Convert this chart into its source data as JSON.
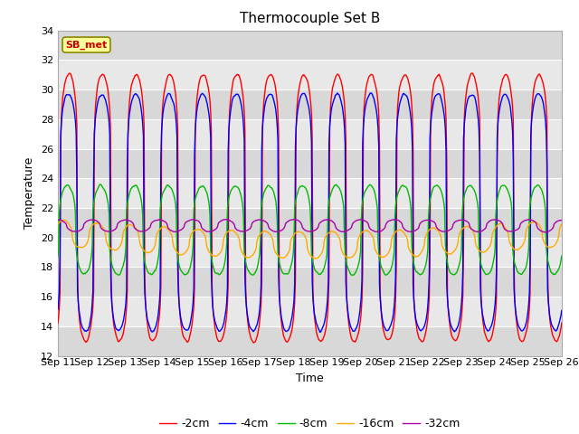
{
  "title": "Thermocouple Set B",
  "xlabel": "Time",
  "ylabel": "Temperature",
  "ylim": [
    12,
    34
  ],
  "yticks": [
    12,
    14,
    16,
    18,
    20,
    22,
    24,
    26,
    28,
    30,
    32,
    34
  ],
  "x_labels": [
    "Sep 11",
    "Sep 12",
    "Sep 13",
    "Sep 14",
    "Sep 15",
    "Sep 16",
    "Sep 17",
    "Sep 18",
    "Sep 19",
    "Sep 20",
    "Sep 21",
    "Sep 22",
    "Sep 23",
    "Sep 24",
    "Sep 25",
    "Sep 26"
  ],
  "series": {
    "-2cm": {
      "color": "#ff0000",
      "lw": 1.0
    },
    "-4cm": {
      "color": "#0000ff",
      "lw": 1.0
    },
    "-8cm": {
      "color": "#00bb00",
      "lw": 1.0
    },
    "-16cm": {
      "color": "#ffaa00",
      "lw": 1.0
    },
    "-32cm": {
      "color": "#aa00aa",
      "lw": 1.0
    }
  },
  "annotation_text": "SB_met",
  "annotation_color": "#cc0000",
  "annotation_bg": "#ffff99",
  "annotation_border": "#888800",
  "bg_color": "#e0e0e0",
  "grid_color": "#ffffff",
  "n_days": 15,
  "n_points": 720,
  "mean_shallow": 22.0,
  "mean_deep16": 20.3,
  "mean_deep32": 20.8,
  "amp_2cm": 9.0,
  "amp_4cm": 8.0,
  "amp_8cm": 3.0,
  "amp_16cm": 0.9,
  "amp_32cm": 0.4,
  "peak_sharpness": 4.0
}
